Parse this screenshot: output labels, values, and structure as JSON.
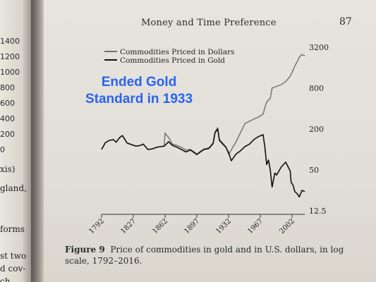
{
  "left_page": {
    "numbers": [
      "1400",
      "1200",
      "1000",
      "800",
      "600",
      "400",
      "200",
      "0"
    ],
    "fragments": [
      "xis)",
      "gland,",
      "forms",
      "st two",
      "d cov-",
      "ch"
    ]
  },
  "page": {
    "running_head": "Money and Time Preference",
    "page_number": "87"
  },
  "annotation": {
    "line1": "Ended Gold",
    "line2": "Standard in 1933"
  },
  "caption": {
    "label": "Figure 9",
    "text": "Price of commodities in gold and in U.S. dollars, in log scale, 1792–2016."
  },
  "chart_data": {
    "type": "line",
    "title": "",
    "xlabel": "",
    "ylabel": "",
    "y_scale": "log",
    "ylim": [
      12.5,
      3200
    ],
    "xlim": [
      1792,
      2016
    ],
    "x_ticks": [
      1792,
      1827,
      1862,
      1897,
      1932,
      1967,
      2002
    ],
    "y_ticks": [
      12.5,
      50,
      200,
      800,
      3200
    ],
    "y_tick_labels": [
      "12.5",
      "50",
      "200",
      "800",
      "3200"
    ],
    "legend_position": "top-left",
    "grid": false,
    "colors": {
      "dollars": "#707070",
      "gold": "#111111"
    },
    "series": [
      {
        "name": "Commodities Priced in Dollars",
        "x": [
          1792,
          1796,
          1800,
          1805,
          1808,
          1812,
          1815,
          1820,
          1825,
          1830,
          1835,
          1838,
          1843,
          1848,
          1853,
          1857,
          1861,
          1862,
          1864,
          1866,
          1870,
          1875,
          1880,
          1885,
          1890,
          1895,
          1897,
          1900,
          1905,
          1910,
          1915,
          1917,
          1920,
          1922,
          1929,
          1932,
          1933,
          1937,
          1940,
          1945,
          1950,
          1955,
          1960,
          1965,
          1970,
          1973,
          1975,
          1978,
          1980,
          1985,
          1990,
          1995,
          2000,
          2003,
          2005,
          2008,
          2010,
          2013,
          2016
        ],
        "values": [
          100,
          125,
          135,
          140,
          128,
          150,
          160,
          125,
          118,
          112,
          115,
          120,
          100,
          102,
          108,
          110,
          112,
          175,
          160,
          150,
          120,
          115,
          108,
          98,
          100,
          90,
          85,
          92,
          102,
          105,
          125,
          180,
          210,
          140,
          110,
          85,
          88,
          110,
          128,
          175,
          240,
          260,
          280,
          300,
          330,
          460,
          520,
          560,
          800,
          850,
          900,
          1000,
          1200,
          1450,
          1700,
          2000,
          2300,
          2500,
          2400
        ]
      },
      {
        "name": "Commodities Priced in Gold",
        "x": [
          1792,
          1796,
          1800,
          1805,
          1808,
          1812,
          1815,
          1820,
          1825,
          1830,
          1835,
          1838,
          1843,
          1848,
          1853,
          1857,
          1861,
          1866,
          1870,
          1875,
          1880,
          1885,
          1890,
          1895,
          1897,
          1900,
          1905,
          1910,
          1915,
          1917,
          1920,
          1922,
          1929,
          1932,
          1935,
          1940,
          1945,
          1950,
          1955,
          1960,
          1965,
          1970,
          1972,
          1974,
          1976,
          1978,
          1980,
          1983,
          1985,
          1990,
          1995,
          2000,
          2001,
          2003,
          2005,
          2008,
          2010,
          2013,
          2016
        ],
        "values": [
          100,
          125,
          135,
          140,
          128,
          150,
          160,
          125,
          118,
          112,
          115,
          120,
          100,
          102,
          108,
          110,
          112,
          130,
          115,
          108,
          100,
          92,
          98,
          88,
          84,
          90,
          100,
          103,
          122,
          175,
          200,
          135,
          108,
          90,
          68,
          85,
          95,
          110,
          120,
          140,
          155,
          165,
          110,
          60,
          70,
          50,
          28,
          45,
          42,
          55,
          65,
          48,
          33,
          30,
          24,
          22,
          20,
          25,
          24
        ]
      }
    ]
  }
}
